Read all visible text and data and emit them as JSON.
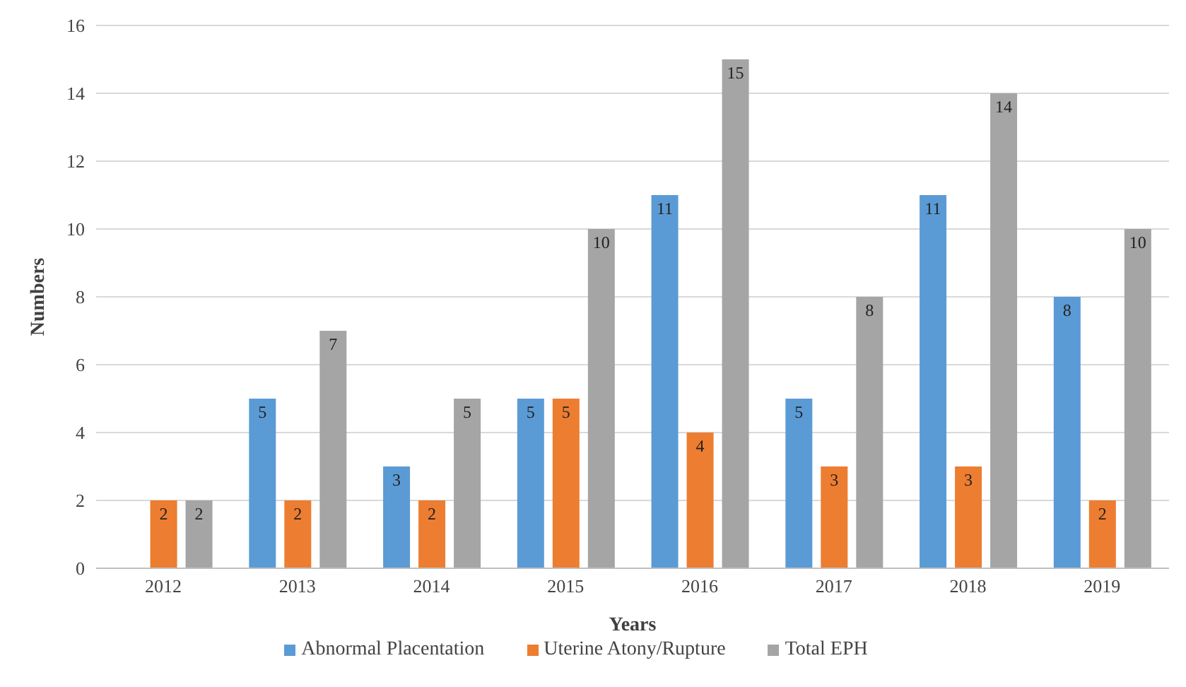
{
  "chart_data": {
    "type": "bar",
    "xlabel": "Years",
    "ylabel": "Numbers",
    "categories": [
      "2012",
      "2013",
      "2014",
      "2015",
      "2016",
      "2017",
      "2018",
      "2019"
    ],
    "series": [
      {
        "name": "Abnormal Placentation",
        "color": "#5b9bd5",
        "values": [
          null,
          5,
          3,
          5,
          11,
          5,
          11,
          8
        ]
      },
      {
        "name": "Uterine Atony/Rupture",
        "color": "#ed7d31",
        "values": [
          2,
          2,
          2,
          5,
          4,
          3,
          3,
          2
        ]
      },
      {
        "name": "Total EPH",
        "color": "#a5a5a5",
        "values": [
          2,
          7,
          5,
          10,
          15,
          8,
          14,
          10
        ]
      }
    ],
    "ylim": [
      0,
      16
    ],
    "yticks": [
      0,
      2,
      4,
      6,
      8,
      10,
      12,
      14,
      16
    ],
    "grid": "y",
    "legend": "bottom",
    "data_labels": true
  }
}
